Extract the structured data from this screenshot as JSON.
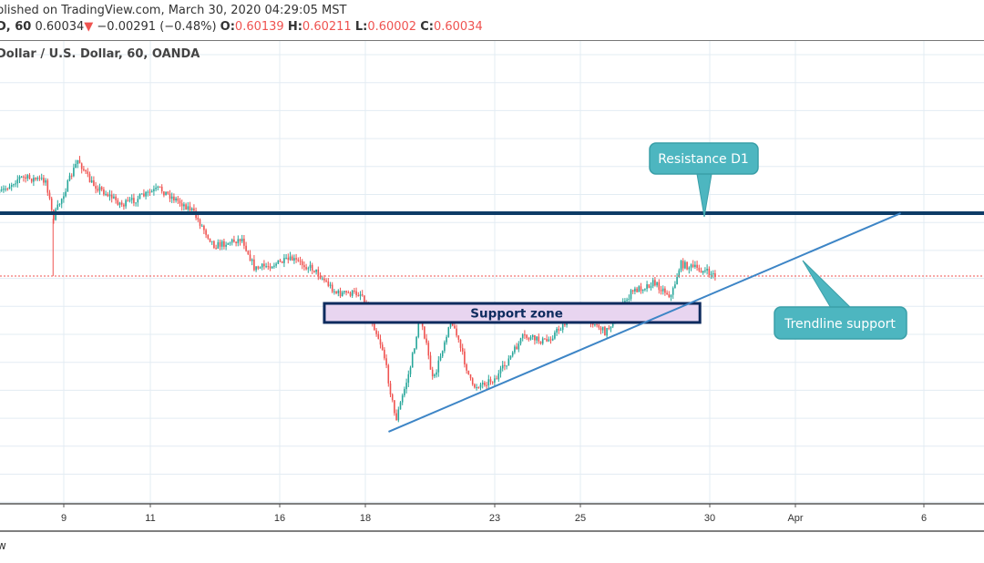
{
  "header": {
    "published": "blished on TradingView.com, March 30, 2020 04:29:05 MST",
    "symbol_interval": "D, 60",
    "last_price": "0.60034",
    "change_icon": "triangle-down-icon",
    "change": "−0.00291 (−0.48%)",
    "o_label": "O:",
    "o_value": "0.60139",
    "h_label": "H:",
    "h_value": "0.60211",
    "l_label": "L:",
    "l_value": "0.60002",
    "c_label": "C:",
    "c_value": "0.60034",
    "title": "Dollar / U.S. Dollar, 60, OANDA"
  },
  "footer": {
    "text": "w"
  },
  "colors": {
    "up": "#26a69a",
    "down": "#ef5350",
    "resistance": "#0d3b66",
    "trendline": "#3d85c6",
    "zone_fill": "#e8d5f0",
    "zone_border": "#0d2b5e",
    "callout": "#4db6c0",
    "last_price_line": "#ef5350"
  },
  "chart_data": {
    "type": "candlestick",
    "interval": "60",
    "x_tick_labels": [
      "9",
      "11",
      "16",
      "18",
      "23",
      "25",
      "30",
      "Apr",
      "6"
    ],
    "last_price": 0.60034,
    "price_path": [
      [
        "2020-03-05T12",
        0.6277
      ],
      [
        "2020-03-05T23",
        0.6329
      ],
      [
        "2020-03-06T14",
        0.632
      ],
      [
        "2020-03-06T18",
        0.6193
      ],
      [
        "2020-03-09T08",
        0.6389
      ],
      [
        "2020-03-09T15",
        0.6313
      ],
      [
        "2020-03-10T09",
        0.6238
      ],
      [
        "2020-03-11T05",
        0.6292
      ],
      [
        "2020-03-11T23",
        0.6223
      ],
      [
        "2020-03-12T12",
        0.6103
      ],
      [
        "2020-03-13T03",
        0.6127
      ],
      [
        "2020-03-13T10",
        0.6027
      ],
      [
        "2020-03-16T07",
        0.6058
      ],
      [
        "2020-03-16T19",
        0.6027
      ],
      [
        "2020-03-17T08",
        0.5946
      ],
      [
        "2020-03-17T22",
        0.5946
      ],
      [
        "2020-03-18T10",
        0.5757
      ],
      [
        "2020-03-18T17",
        0.5525
      ],
      [
        "2020-03-19T01",
        0.5696
      ],
      [
        "2020-03-19T07",
        0.5877
      ],
      [
        "2020-03-19T14",
        0.5651
      ],
      [
        "2020-03-20T00",
        0.5868
      ],
      [
        "2020-03-20T12",
        0.5636
      ],
      [
        "2020-03-23T01",
        0.5666
      ],
      [
        "2020-03-23T16",
        0.5802
      ],
      [
        "2020-03-24T05",
        0.5787
      ],
      [
        "2020-03-24T23",
        0.5892
      ],
      [
        "2020-03-25T14",
        0.5817
      ],
      [
        "2020-03-26T05",
        0.5952
      ],
      [
        "2020-03-26T17",
        0.5982
      ],
      [
        "2020-03-27T03",
        0.5937
      ],
      [
        "2020-03-27T08",
        0.6043
      ],
      [
        "2020-03-27T19",
        0.6025
      ],
      [
        "2020-03-30T04",
        0.60034
      ]
    ],
    "wick_spike": {
      "t": "2020-03-06T18",
      "low": 0.6003
    },
    "annotations": {
      "resistance": {
        "label": "Resistance D1",
        "price": 0.6211
      },
      "support_zone": {
        "label": "Support zone",
        "from": "2020-03-17T01",
        "to": "2020-03-27T19",
        "top": 0.5913,
        "bottom": 0.585
      },
      "trendline": {
        "label": "Trendline support",
        "from": [
          "2020-03-18T13",
          0.5489
        ],
        "to": [
          "2020-04-03T11",
          0.6211
        ]
      }
    }
  }
}
